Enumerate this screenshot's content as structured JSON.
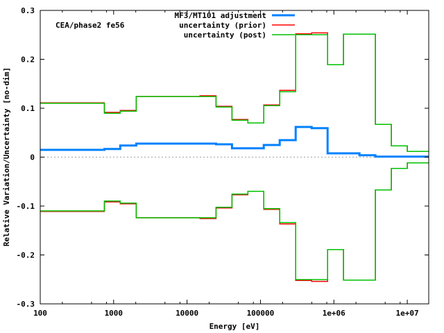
{
  "chart_data": {
    "type": "line",
    "subtype": "step",
    "xlabel": "Energy [eV]",
    "ylabel": "Relative Variation/Uncertainty [no-dim]",
    "annotation": "CEA/phase2 fe56",
    "xscale": "log",
    "xlim": [
      100,
      19600000
    ],
    "ylim": [
      -0.3,
      0.3
    ],
    "xticks": [
      100,
      1000,
      10000,
      100000,
      1000000,
      10000000
    ],
    "xtick_labels": [
      "100",
      "1000",
      "10000",
      "100000",
      "1e+06",
      "1e+07"
    ],
    "yticks": [
      0.3,
      0.2,
      0.1,
      0,
      -0.1,
      -0.2,
      -0.3
    ],
    "ytick_labels": [
      "0.3",
      "0.2",
      "0.1",
      "0",
      "-0.1",
      "-0.2",
      "-0.3"
    ],
    "zero_line": true,
    "legend_position": "top-center",
    "bin_edges": [
      100,
      749,
      1230,
      2030,
      15000,
      24800,
      40900,
      67400,
      111000,
      183000,
      302000,
      498000,
      821000,
      1350000,
      2230000,
      3680000,
      6070000,
      10000000,
      19600000
    ],
    "series": [
      {
        "name": "MF3/MT101 adjustment",
        "color": "#0080ff",
        "symmetric": false,
        "values": [
          0.0149,
          0.0168,
          0.0239,
          0.0277,
          0.0277,
          0.0262,
          0.0182,
          0.0182,
          0.0248,
          0.0348,
          0.0617,
          0.0593,
          0.0078,
          0.0078,
          0.004,
          0.0012,
          0.0012,
          0.0012
        ]
      },
      {
        "name": "uncertainty (prior)",
        "color": "#ff0000",
        "symmetric": true,
        "values": [
          0.111,
          0.0915,
          0.0953,
          0.124,
          0.1255,
          0.1038,
          0.0769,
          0.0698,
          0.1066,
          0.1364,
          0.2522,
          0.254,
          0.189,
          0.2513,
          0.2513,
          0.067,
          0.023,
          0.0116
        ]
      },
      {
        "name": "uncertainty (post)",
        "color": "#00c000",
        "symmetric": true,
        "values": [
          0.11,
          0.0896,
          0.094,
          0.124,
          0.124,
          0.1024,
          0.0755,
          0.0698,
          0.1052,
          0.1336,
          0.2504,
          0.2504,
          0.189,
          0.2513,
          0.2513,
          0.067,
          0.023,
          0.0116
        ]
      }
    ]
  }
}
